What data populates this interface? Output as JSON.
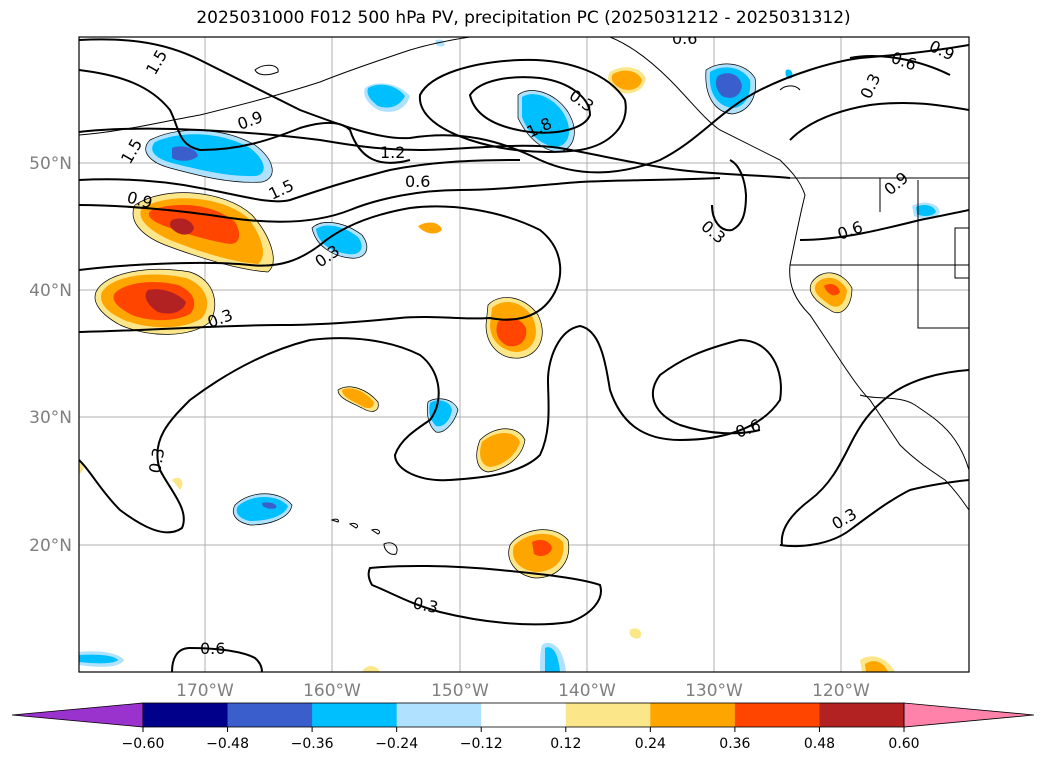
{
  "title": "2025031000 F012 500 hPa PV, precipitation PC (2025031212 - 2025031312)",
  "map": {
    "lat_labels": [
      "50°N",
      "40°N",
      "30°N",
      "20°N"
    ],
    "lon_labels": [
      "170°W",
      "160°W",
      "150°W",
      "140°W",
      "130°W",
      "120°W"
    ],
    "contour_labels": [
      "1.5",
      "0.9",
      "1.5",
      "1.2",
      "1.5",
      "1.8",
      "0.6",
      "0.9",
      "0.3",
      "0.3",
      "0.3",
      "0.6",
      "0.3",
      "0.6",
      "0.3",
      "0.3",
      "0.9",
      "0.6",
      "0.3",
      "0.6",
      "0.3",
      "0.6",
      "0.9"
    ]
  },
  "colorbar": {
    "ticks": [
      "−0.60",
      "−0.48",
      "−0.36",
      "−0.24",
      "−0.12",
      "0.12",
      "0.24",
      "0.36",
      "0.48",
      "0.60"
    ],
    "colors": [
      "#9a32cd",
      "#00008b",
      "#3a5fcd",
      "#00bfff",
      "#b0e2ff",
      "#ffffff",
      "#fbe68a",
      "#ffa500",
      "#ff4500",
      "#b22222",
      "#ff82ab"
    ]
  }
}
